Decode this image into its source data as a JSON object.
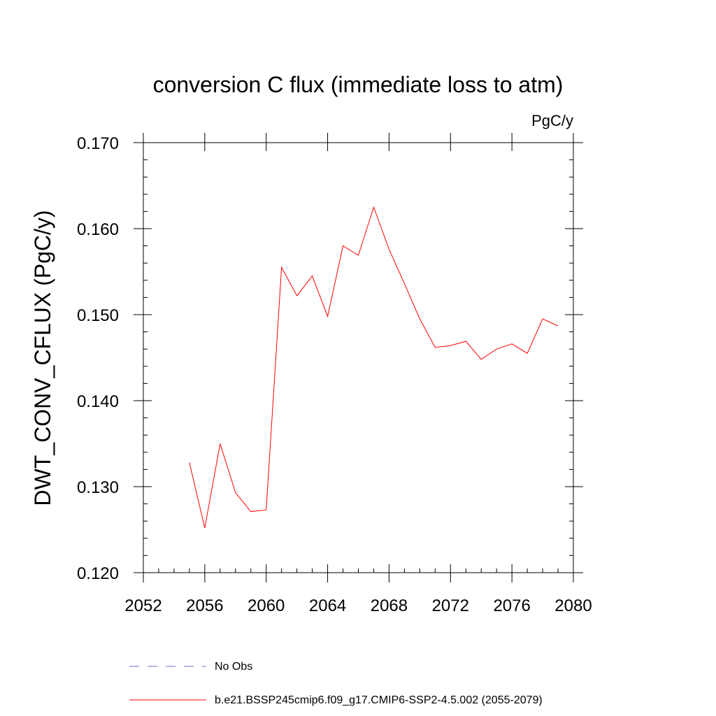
{
  "chart_data": {
    "type": "line",
    "title": "conversion C flux (immediate loss to atm)",
    "units": "PgC/y",
    "xlabel": "",
    "ylabel": "DWT_CONV_CFLUX  (PgC/y)",
    "xlim": [
      2052,
      2080
    ],
    "ylim": [
      0.12,
      0.17
    ],
    "x_ticks": [
      2052,
      2056,
      2060,
      2064,
      2068,
      2072,
      2076,
      2080
    ],
    "x_tick_labels": [
      "2052",
      "2056",
      "2060",
      "2064",
      "2068",
      "2072",
      "2076",
      "2080"
    ],
    "y_ticks": [
      0.12,
      0.13,
      0.14,
      0.15,
      0.16,
      0.17
    ],
    "y_tick_labels": [
      "0.120",
      "0.130",
      "0.140",
      "0.150",
      "0.160",
      "0.170"
    ],
    "series": [
      {
        "name": "b.e21.BSSP245cmip6.f09_g17.CMIP6-SSP2-4.5.002 (2055-2079)",
        "color": "#ff0000",
        "x": [
          2055,
          2056,
          2057,
          2058,
          2059,
          2060,
          2061,
          2062,
          2063,
          2064,
          2065,
          2066,
          2067,
          2068,
          2069,
          2070,
          2071,
          2072,
          2073,
          2074,
          2075,
          2076,
          2077,
          2078,
          2079
        ],
        "y": [
          0.1328,
          0.1252,
          0.135,
          0.1293,
          0.1271,
          0.1273,
          0.1555,
          0.1522,
          0.1545,
          0.1498,
          0.158,
          0.1569,
          0.1625,
          0.1576,
          0.1536,
          0.1495,
          0.1462,
          0.1464,
          0.1469,
          0.1448,
          0.146,
          0.1466,
          0.1455,
          0.1495,
          0.1487
        ]
      }
    ],
    "legend": [
      {
        "label": "No Obs",
        "color": "#7b68c8",
        "style": "dashed"
      },
      {
        "label": "b.e21.BSSP245cmip6.f09_g17.CMIP6-SSP2-4.5.002 (2055-2079)",
        "color": "#ff0000",
        "style": "solid"
      }
    ]
  }
}
